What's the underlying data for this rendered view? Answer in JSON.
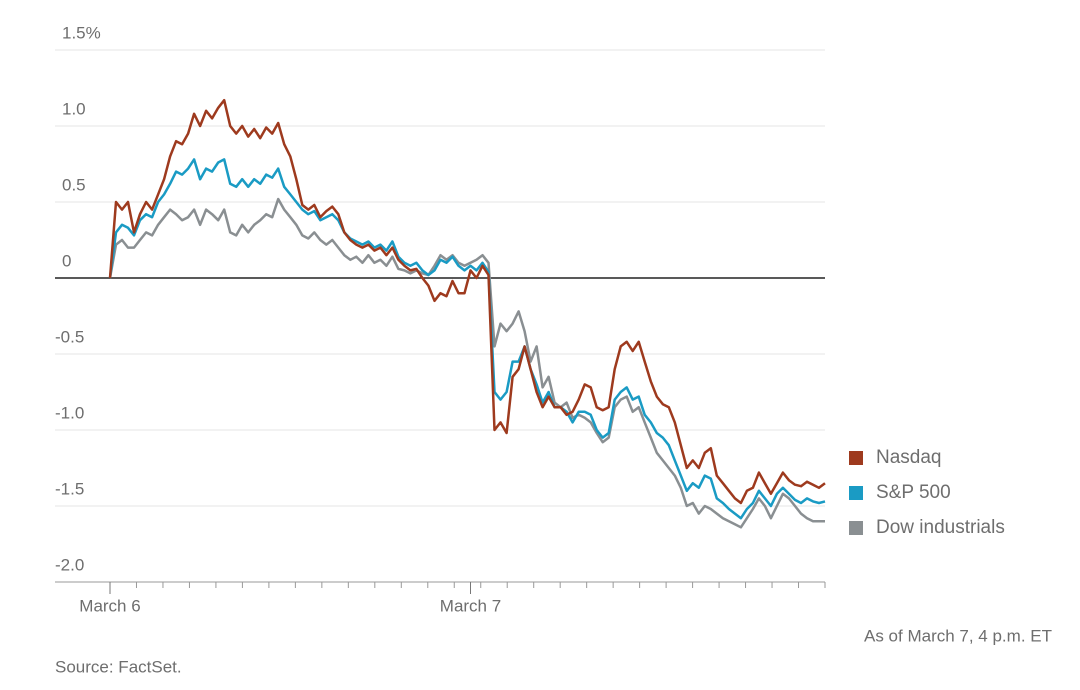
{
  "chart_data": {
    "type": "line",
    "categories": [
      "March 6",
      null,
      null,
      null,
      null,
      null,
      null,
      null,
      null,
      null,
      null,
      null,
      null,
      null,
      null,
      null,
      null,
      null,
      null,
      null,
      null,
      null,
      null,
      null,
      null,
      null,
      null,
      null,
      null,
      null,
      null,
      null,
      null,
      null,
      null,
      null,
      null,
      null,
      null,
      null,
      null,
      null,
      null,
      null,
      null,
      null,
      null,
      null,
      null,
      null,
      null,
      null,
      null,
      null,
      null,
      null,
      null,
      null,
      null,
      null,
      "March 7",
      null,
      null,
      null,
      null,
      null,
      null,
      null,
      null,
      null,
      null,
      null,
      null,
      null,
      null,
      null,
      null,
      null,
      null,
      null,
      null,
      null,
      null,
      null,
      null,
      null,
      null,
      null,
      null,
      null,
      null,
      null,
      null,
      null,
      null,
      null,
      null,
      null,
      null,
      null,
      null,
      null,
      null,
      null,
      null,
      null,
      null,
      null,
      null,
      null,
      null,
      null,
      null,
      null,
      null,
      null,
      null,
      null,
      null,
      null
    ],
    "series": [
      {
        "name": "Nasdaq",
        "color": "#9e3a1e",
        "values": [
          0,
          0.5,
          0.45,
          0.5,
          0.3,
          0.42,
          0.5,
          0.45,
          0.55,
          0.65,
          0.8,
          0.9,
          0.88,
          0.95,
          1.08,
          1.0,
          1.1,
          1.05,
          1.12,
          1.17,
          1.0,
          0.95,
          1.0,
          0.93,
          0.98,
          0.92,
          0.99,
          0.95,
          1.02,
          0.88,
          0.8,
          0.65,
          0.48,
          0.45,
          0.48,
          0.4,
          0.44,
          0.47,
          0.42,
          0.3,
          0.25,
          0.22,
          0.2,
          0.22,
          0.18,
          0.2,
          0.15,
          0.2,
          0.12,
          0.08,
          0.05,
          0.06,
          0,
          -0.05,
          -0.15,
          -0.1,
          -0.12,
          -0.02,
          -0.1,
          -0.1,
          0.05,
          0.0,
          0.08,
          0.02,
          -1.0,
          -0.95,
          -1.02,
          -0.65,
          -0.6,
          -0.45,
          -0.6,
          -0.75,
          -0.85,
          -0.78,
          -0.85,
          -0.85,
          -0.9,
          -0.88,
          -0.8,
          -0.7,
          -0.72,
          -0.85,
          -0.87,
          -0.85,
          -0.6,
          -0.45,
          -0.42,
          -0.48,
          -0.42,
          -0.55,
          -0.68,
          -0.78,
          -0.83,
          -0.85,
          -0.95,
          -1.1,
          -1.25,
          -1.2,
          -1.25,
          -1.15,
          -1.12,
          -1.3,
          -1.35,
          -1.4,
          -1.45,
          -1.48,
          -1.4,
          -1.38,
          -1.28,
          -1.35,
          -1.42,
          -1.35,
          -1.28,
          -1.33,
          -1.36,
          -1.37,
          -1.34,
          -1.36,
          -1.38,
          -1.35
        ]
      },
      {
        "name": "S&P 500",
        "color": "#1a9bc4",
        "values": [
          0,
          0.3,
          0.35,
          0.33,
          0.28,
          0.38,
          0.42,
          0.4,
          0.5,
          0.55,
          0.62,
          0.7,
          0.68,
          0.72,
          0.78,
          0.65,
          0.72,
          0.7,
          0.76,
          0.78,
          0.62,
          0.6,
          0.65,
          0.6,
          0.65,
          0.62,
          0.68,
          0.66,
          0.72,
          0.6,
          0.55,
          0.5,
          0.45,
          0.42,
          0.44,
          0.38,
          0.4,
          0.42,
          0.38,
          0.3,
          0.26,
          0.24,
          0.22,
          0.24,
          0.2,
          0.22,
          0.18,
          0.24,
          0.14,
          0.1,
          0.08,
          0.1,
          0.05,
          0.02,
          0.05,
          0.12,
          0.1,
          0.14,
          0.08,
          0.05,
          0.08,
          0.05,
          0.1,
          0.04,
          -0.75,
          -0.8,
          -0.75,
          -0.55,
          -0.55,
          -0.45,
          -0.6,
          -0.7,
          -0.82,
          -0.75,
          -0.85,
          -0.85,
          -0.88,
          -0.95,
          -0.88,
          -0.88,
          -0.9,
          -1.0,
          -1.05,
          -1.02,
          -0.8,
          -0.75,
          -0.72,
          -0.8,
          -0.78,
          -0.9,
          -0.95,
          -1.02,
          -1.05,
          -1.1,
          -1.2,
          -1.3,
          -1.4,
          -1.35,
          -1.38,
          -1.3,
          -1.32,
          -1.45,
          -1.48,
          -1.52,
          -1.55,
          -1.58,
          -1.52,
          -1.48,
          -1.4,
          -1.45,
          -1.5,
          -1.42,
          -1.38,
          -1.42,
          -1.46,
          -1.48,
          -1.45,
          -1.47,
          -1.48,
          -1.47
        ]
      },
      {
        "name": "Dow industrials",
        "color": "#8a8f92",
        "values": [
          0,
          0.22,
          0.25,
          0.2,
          0.2,
          0.25,
          0.3,
          0.28,
          0.35,
          0.4,
          0.45,
          0.42,
          0.38,
          0.4,
          0.45,
          0.35,
          0.45,
          0.42,
          0.38,
          0.45,
          0.3,
          0.28,
          0.35,
          0.3,
          0.35,
          0.38,
          0.42,
          0.4,
          0.52,
          0.45,
          0.4,
          0.35,
          0.28,
          0.26,
          0.3,
          0.25,
          0.22,
          0.25,
          0.2,
          0.15,
          0.12,
          0.14,
          0.1,
          0.15,
          0.1,
          0.12,
          0.08,
          0.14,
          0.06,
          0.05,
          0.03,
          0.05,
          0.03,
          0.02,
          0.08,
          0.15,
          0.12,
          0.15,
          0.1,
          0.08,
          0.1,
          0.12,
          0.15,
          0.1,
          -0.45,
          -0.3,
          -0.35,
          -0.3,
          -0.22,
          -0.35,
          -0.55,
          -0.45,
          -0.72,
          -0.65,
          -0.82,
          -0.85,
          -0.82,
          -0.92,
          -0.9,
          -0.92,
          -0.95,
          -1.02,
          -1.08,
          -1.05,
          -0.85,
          -0.8,
          -0.78,
          -0.88,
          -0.85,
          -0.95,
          -1.05,
          -1.15,
          -1.2,
          -1.25,
          -1.3,
          -1.38,
          -1.5,
          -1.48,
          -1.55,
          -1.5,
          -1.52,
          -1.55,
          -1.58,
          -1.6,
          -1.62,
          -1.64,
          -1.58,
          -1.52,
          -1.45,
          -1.5,
          -1.58,
          -1.5,
          -1.42,
          -1.45,
          -1.5,
          -1.55,
          -1.58,
          -1.6,
          -1.6,
          -1.6
        ]
      }
    ],
    "ylim": [
      -2,
      1.5
    ],
    "yticks": [
      {
        "value": 1.5,
        "label": "1.5%"
      },
      {
        "value": 1,
        "label": "1.0"
      },
      0.5,
      0,
      -0.5,
      {
        "value": -1,
        "label": "-1.0"
      },
      -1.5,
      {
        "value": -2,
        "label": "-2.0"
      }
    ],
    "grid": true,
    "legend": "right",
    "note": "As of March 7, 4 p.m. ET",
    "source": "Source: FactSet."
  }
}
